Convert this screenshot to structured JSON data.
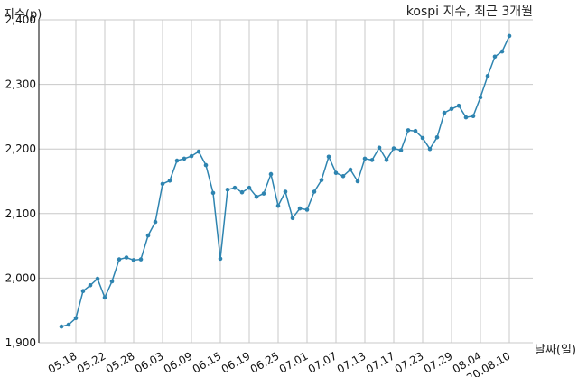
{
  "chart_data": {
    "type": "line",
    "title": "kospi 지수, 최근 3개월",
    "xlabel": "날짜(일)",
    "ylabel": "지수(p)",
    "ylim": [
      1900,
      2400
    ],
    "yticks": [
      "1,900",
      "2,000",
      "2,100",
      "2,200",
      "2,300",
      "2,400"
    ],
    "yticks_values": [
      1900,
      2000,
      2100,
      2200,
      2300,
      2400
    ],
    "xticks": [
      {
        "index": 2,
        "label": "05.18"
      },
      {
        "index": 6,
        "label": "05.22"
      },
      {
        "index": 10,
        "label": "05.28"
      },
      {
        "index": 14,
        "label": "06.03"
      },
      {
        "index": 18,
        "label": "06.09"
      },
      {
        "index": 22,
        "label": "06.15"
      },
      {
        "index": 26,
        "label": "06.19"
      },
      {
        "index": 30,
        "label": "06.25"
      },
      {
        "index": 34,
        "label": "07.01"
      },
      {
        "index": 38,
        "label": "07.07"
      },
      {
        "index": 42,
        "label": "07.13"
      },
      {
        "index": 46,
        "label": "07.17"
      },
      {
        "index": 50,
        "label": "07.23"
      },
      {
        "index": 54,
        "label": "07.29"
      },
      {
        "index": 58,
        "label": "08.04"
      },
      {
        "index": 62,
        "label": "20.08.10"
      }
    ],
    "grid": true,
    "color": "#2e84b0",
    "values": [
      1925,
      1928,
      1938,
      1980,
      1989,
      1999,
      1970,
      1995,
      2029,
      2032,
      2028,
      2029,
      2066,
      2087,
      2146,
      2151,
      2182,
      2185,
      2189,
      2196,
      2175,
      2132,
      2030,
      2137,
      2140,
      2133,
      2140,
      2126,
      2131,
      2161,
      2112,
      2134,
      2093,
      2108,
      2106,
      2134,
      2152,
      2188,
      2163,
      2158,
      2168,
      2150,
      2185,
      2183,
      2202,
      2183,
      2201,
      2198,
      2229,
      2228,
      2217,
      2200,
      2218,
      2256,
      2262,
      2267,
      2249,
      2251,
      2280,
      2313,
      2343,
      2351,
      2375
    ]
  }
}
